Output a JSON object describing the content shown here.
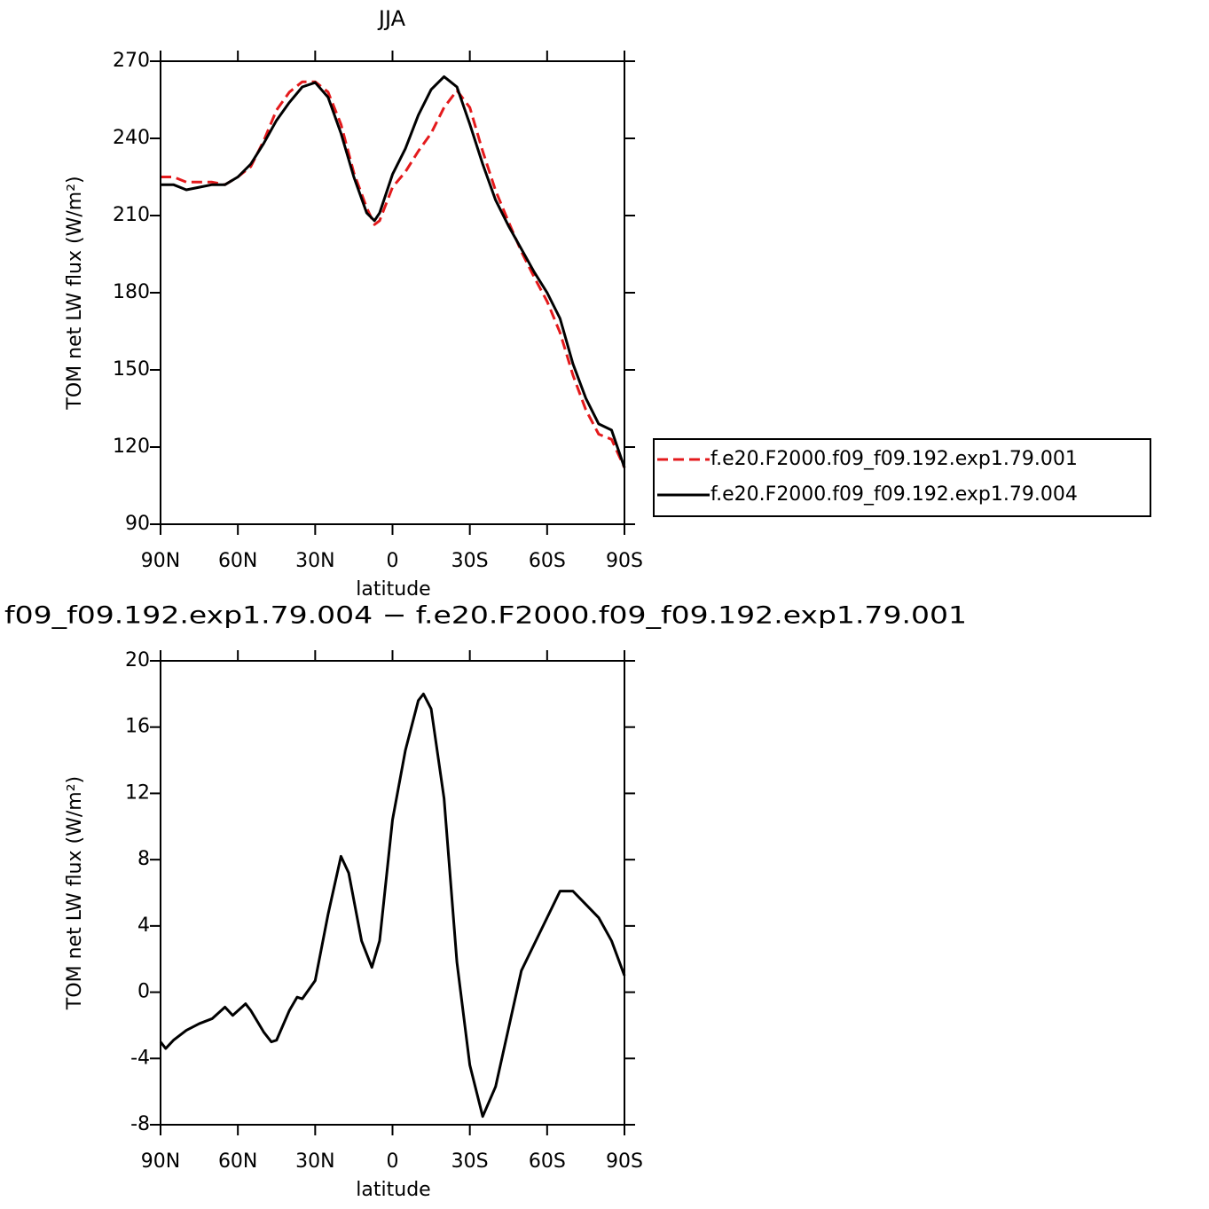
{
  "chart_data": [
    {
      "type": "line",
      "title": "JJA",
      "xlabel": "latitude",
      "ylabel": "TOM net LW flux (W/m²)",
      "xlim": [
        90,
        -90
      ],
      "ylim": [
        90,
        270
      ],
      "xticks": [
        {
          "value": 90,
          "label": "90N"
        },
        {
          "value": 60,
          "label": "60N"
        },
        {
          "value": 30,
          "label": "30N"
        },
        0,
        {
          "value": -30,
          "label": "30S"
        },
        {
          "value": -60,
          "label": "60S"
        },
        {
          "value": -90,
          "label": "90S"
        }
      ],
      "yticks": [
        90,
        120,
        150,
        180,
        210,
        240,
        270
      ],
      "legend": "right",
      "x": [
        90,
        85,
        80,
        75,
        70,
        65,
        60,
        55,
        50,
        45,
        40,
        35,
        30,
        25,
        20,
        15,
        10,
        7,
        5,
        0,
        -5,
        -10,
        -15,
        -20,
        -25,
        -30,
        -35,
        -40,
        -45,
        -50,
        -55,
        -60,
        -65,
        -70,
        -75,
        -80,
        -85,
        -90
      ],
      "series": [
        {
          "name": "f.e20.F2000.f09_f09.192.exp1.79.001",
          "color": "#e41a1c",
          "dash": "dashed",
          "values": [
            225,
            225,
            223,
            223,
            223,
            222,
            225,
            229,
            239,
            251,
            258,
            262,
            262,
            258,
            245.5,
            226.6,
            213,
            206.5,
            208,
            221,
            227,
            235,
            242,
            252,
            258.6,
            252,
            235,
            219.7,
            207.6,
            196,
            186,
            176.6,
            164.5,
            148,
            134.5,
            125,
            123,
            112
          ]
        },
        {
          "name": "f.e20.F2000.f09_f09.192.exp1.79.004",
          "color": "#000000",
          "dash": "solid",
          "values": [
            222,
            222,
            220,
            221,
            222,
            222,
            225,
            230,
            238,
            247,
            254,
            260,
            261.7,
            256,
            242,
            225,
            211,
            208,
            211,
            226,
            236,
            249,
            259,
            264,
            260,
            245.5,
            230,
            216,
            206,
            197,
            188,
            180,
            170,
            152.4,
            139,
            129,
            126.6,
            112
          ]
        }
      ]
    },
    {
      "type": "line",
      "title": "f09_f09.192.exp1.79.004 − f.e20.F2000.f09_f09.192.exp1.79.001",
      "xlabel": "latitude",
      "ylabel": "TOM net LW flux (W/m²)",
      "xlim": [
        90,
        -90
      ],
      "ylim": [
        -8,
        20
      ],
      "xticks": [
        {
          "value": 90,
          "label": "90N"
        },
        {
          "value": 60,
          "label": "60N"
        },
        {
          "value": 30,
          "label": "30N"
        },
        0,
        {
          "value": -30,
          "label": "30S"
        },
        {
          "value": -60,
          "label": "60S"
        },
        {
          "value": -90,
          "label": "90S"
        }
      ],
      "yticks": [
        -8,
        -4,
        0,
        4,
        8,
        12,
        16,
        20
      ],
      "x": [
        90,
        88,
        85,
        80,
        75,
        70,
        65,
        62,
        57,
        55,
        50,
        47,
        45,
        40,
        37,
        35,
        30,
        25,
        20,
        17,
        12,
        8,
        5,
        0,
        -5,
        -10,
        -12,
        -15,
        -20,
        -25,
        -30,
        -35,
        -40,
        -45,
        -50,
        -55,
        -60,
        -65,
        -70,
        -75,
        -80,
        -85,
        -90
      ],
      "color": "#000000",
      "values": [
        -3.0,
        -3.4,
        -2.9,
        -2.3,
        -1.9,
        -1.6,
        -0.9,
        -1.4,
        -0.7,
        -1.1,
        -2.4,
        -3.0,
        -2.9,
        -1.1,
        -0.3,
        -0.4,
        0.7,
        4.7,
        8.2,
        7.2,
        3.1,
        1.5,
        3.1,
        10.4,
        14.6,
        17.6,
        18.0,
        17.1,
        11.7,
        1.8,
        -4.4,
        -7.5,
        -5.7,
        -2.2,
        1.3,
        2.9,
        4.5,
        6.1,
        6.1,
        5.3,
        4.5,
        3.1,
        1.0
      ]
    }
  ]
}
